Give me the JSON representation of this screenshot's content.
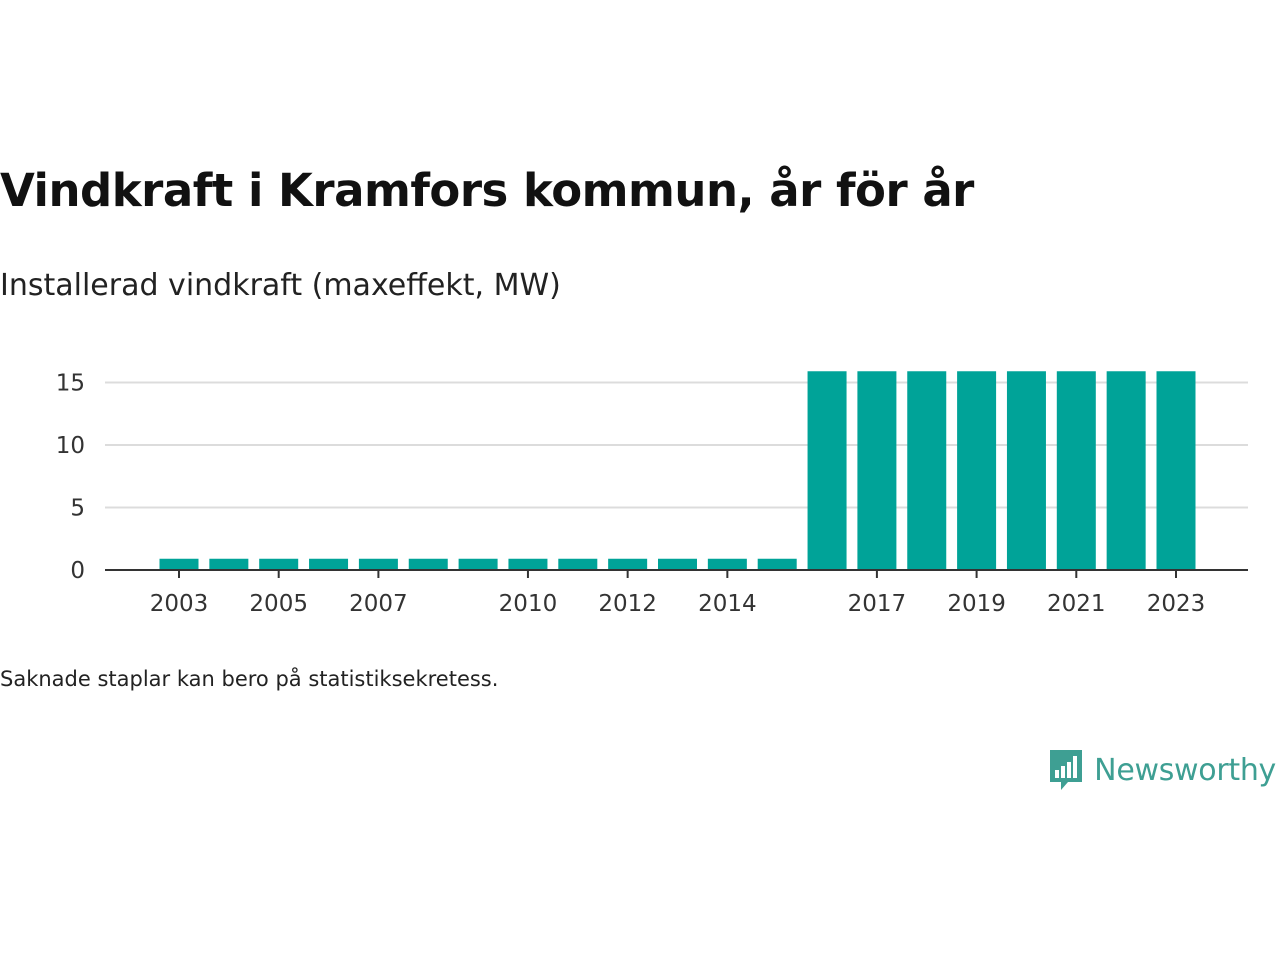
{
  "title": "Vindkraft i Kramfors kommun, år för år",
  "subtitle": "Installerad vindkraft (maxeffekt, MW)",
  "footnote": "Saknade staplar kan bero på statistiksekretess.",
  "logo": {
    "text": "Newsworthy",
    "icon": "newsworthy-bar-chart-icon",
    "color": "#3e9f93"
  },
  "colors": {
    "bar": "#00a398",
    "grid": "#dcdcdc",
    "axis": "#333333"
  },
  "chart_data": {
    "type": "bar",
    "categories": [
      "2003",
      "2004",
      "2005",
      "2006",
      "2007",
      "2008",
      "2009",
      "2010",
      "2011",
      "2012",
      "2013",
      "2014",
      "2015",
      "2016",
      "2017",
      "2018",
      "2019",
      "2020",
      "2021",
      "2022",
      "2023"
    ],
    "values": [
      0.9,
      0.9,
      0.9,
      0.9,
      0.9,
      0.9,
      0.9,
      0.9,
      0.9,
      0.9,
      0.9,
      0.9,
      0.9,
      15.9,
      15.9,
      15.9,
      15.9,
      15.9,
      15.9,
      15.9,
      15.9
    ],
    "xtick_labels": [
      "2003",
      "2005",
      "2007",
      "2010",
      "2012",
      "2014",
      "2017",
      "2019",
      "2021",
      "2023"
    ],
    "yticks": [
      0,
      5,
      10,
      15
    ],
    "ylim": [
      0,
      16
    ],
    "xlabel": "",
    "ylabel": "",
    "grid": true,
    "legend": "none"
  }
}
